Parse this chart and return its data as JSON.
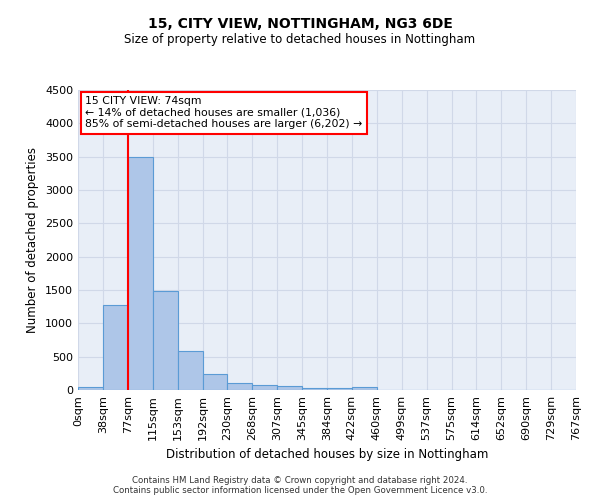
{
  "title": "15, CITY VIEW, NOTTINGHAM, NG3 6DE",
  "subtitle": "Size of property relative to detached houses in Nottingham",
  "xlabel": "Distribution of detached houses by size in Nottingham",
  "ylabel": "Number of detached properties",
  "footer_line1": "Contains HM Land Registry data © Crown copyright and database right 2024.",
  "footer_line2": "Contains public sector information licensed under the Open Government Licence v3.0.",
  "bin_labels": [
    "0sqm",
    "38sqm",
    "77sqm",
    "115sqm",
    "153sqm",
    "192sqm",
    "230sqm",
    "268sqm",
    "307sqm",
    "345sqm",
    "384sqm",
    "422sqm",
    "460sqm",
    "499sqm",
    "537sqm",
    "575sqm",
    "614sqm",
    "652sqm",
    "690sqm",
    "729sqm",
    "767sqm"
  ],
  "bar_values": [
    40,
    1280,
    3500,
    1480,
    580,
    240,
    110,
    80,
    55,
    30,
    30,
    50,
    0,
    0,
    0,
    0,
    0,
    0,
    0,
    0
  ],
  "bar_color": "#aec6e8",
  "bar_edge_color": "#5b9bd5",
  "grid_color": "#d0d8e8",
  "bg_color": "#e8eef7",
  "annotation_box_text_line1": "15 CITY VIEW: 74sqm",
  "annotation_box_text_line2": "← 14% of detached houses are smaller (1,036)",
  "annotation_box_text_line3": "85% of semi-detached houses are larger (6,202) →",
  "annotation_box_color": "white",
  "annotation_box_edge_color": "red",
  "vline_x": 77,
  "vline_color": "red",
  "ylim": [
    0,
    4500
  ],
  "yticks": [
    0,
    500,
    1000,
    1500,
    2000,
    2500,
    3000,
    3500,
    4000,
    4500
  ],
  "bin_width": 38,
  "n_bars": 20
}
